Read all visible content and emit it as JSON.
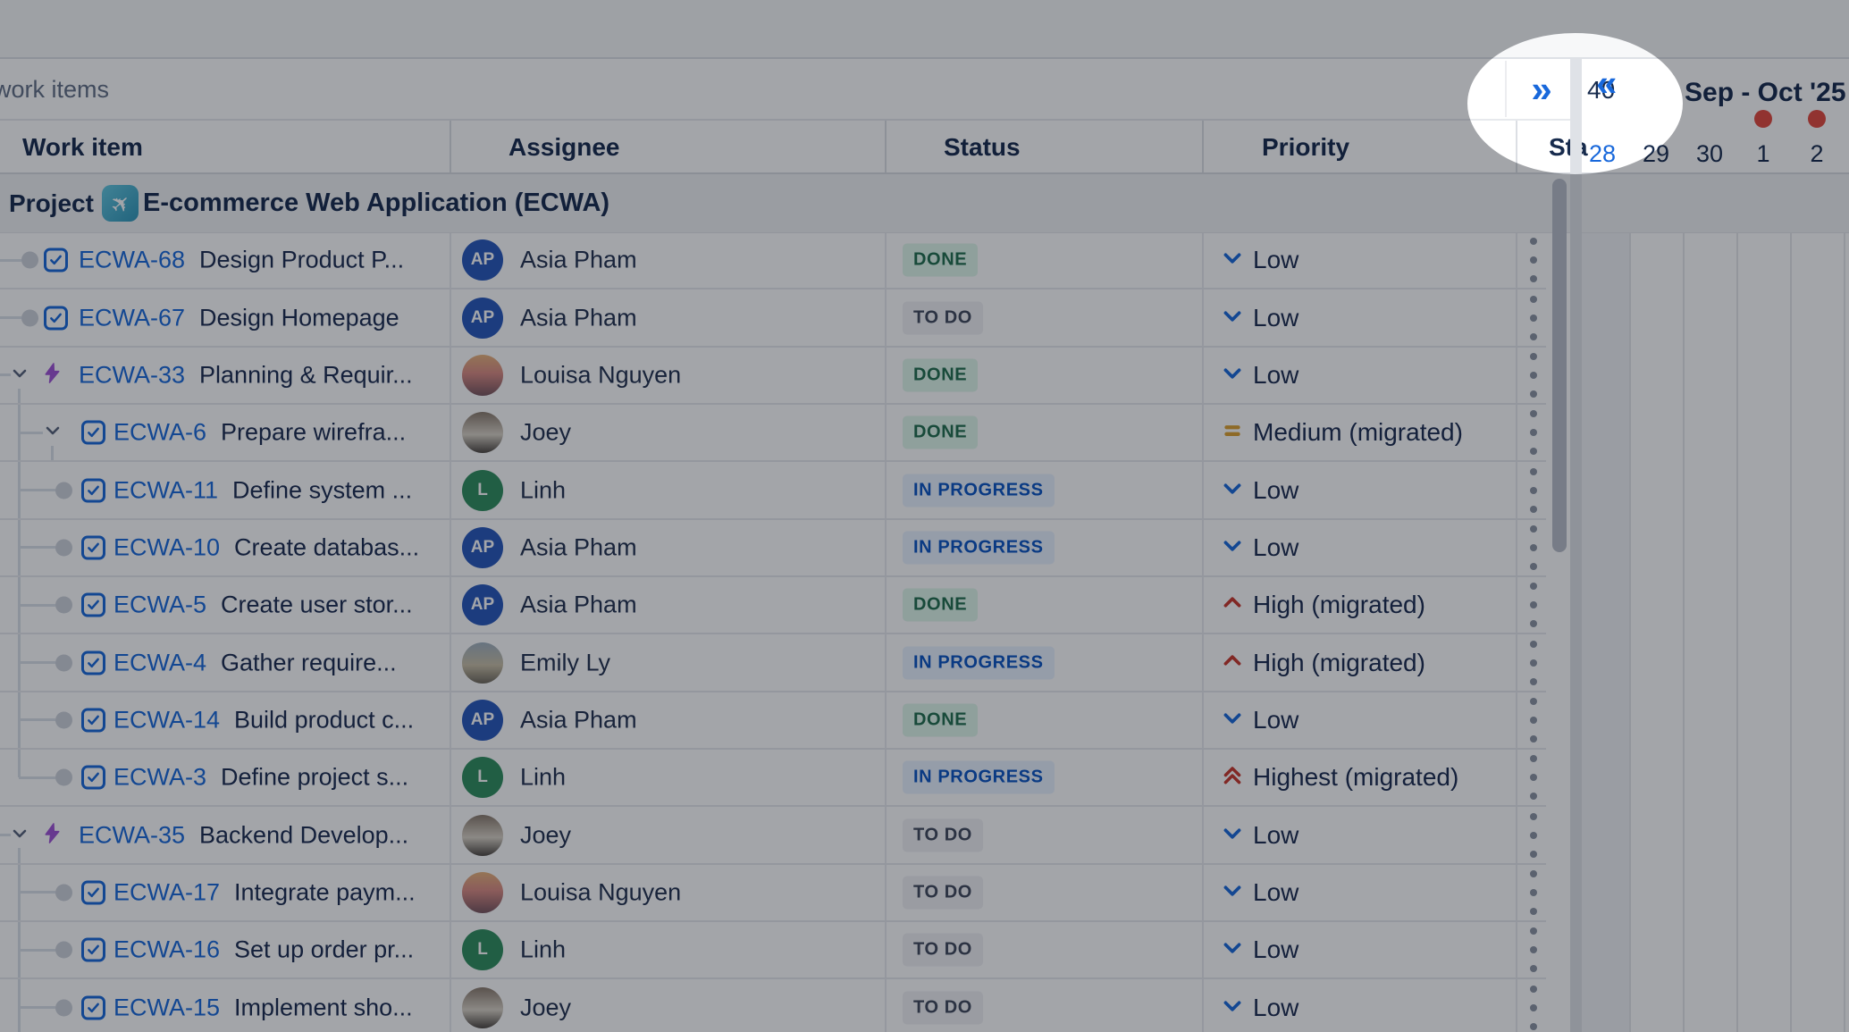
{
  "toolbar": {
    "left_label": "work items",
    "expand_glyph": "»"
  },
  "columns": [
    {
      "label": "Work item"
    },
    {
      "label": "Assignee"
    },
    {
      "label": "Status"
    },
    {
      "label": "Priority"
    },
    {
      "label": "Sta"
    }
  ],
  "project": {
    "label": "Project",
    "icon": "airplane-icon",
    "name": "E-commerce Web Application (ECWA)"
  },
  "people": {
    "asia": {
      "name": "Asia Pham",
      "kind": "initials",
      "initials": "AP",
      "color": "#2757BB"
    },
    "linh": {
      "name": "Linh",
      "kind": "initials",
      "initials": "L",
      "color": "#2F8E5E"
    },
    "louisa": {
      "name": "Louisa Nguyen",
      "kind": "photo",
      "photo": "louisa"
    },
    "joey": {
      "name": "Joey",
      "kind": "photo",
      "photo": "joey"
    },
    "emily": {
      "name": "Emily Ly",
      "kind": "photo",
      "photo": "emily"
    }
  },
  "statuses": {
    "done": {
      "label": "DONE",
      "variant": "st-done"
    },
    "todo": {
      "label": "TO DO",
      "variant": "st-todo"
    },
    "inprog": {
      "label": "IN PROGRESS",
      "variant": "st-inprog"
    }
  },
  "priorities": {
    "low": {
      "label": "Low"
    },
    "medium": {
      "label": "Medium (migrated)"
    },
    "high": {
      "label": "High (migrated)"
    },
    "highest": {
      "label": "Highest (migrated)"
    }
  },
  "rows": [
    {
      "key": "ECWA-68",
      "summary": "Design Product P...",
      "type": "task",
      "indent": 0,
      "lead": "dot",
      "vline": "none",
      "assignee": "asia",
      "status": "done",
      "priority": "low"
    },
    {
      "key": "ECWA-67",
      "summary": "Design Homepage",
      "type": "task",
      "indent": 0,
      "lead": "dot",
      "vline": "none",
      "assignee": "asia",
      "status": "todo",
      "priority": "low"
    },
    {
      "key": "ECWA-33",
      "summary": "Planning & Requir...",
      "type": "epic",
      "indent": 0,
      "lead": "chevron",
      "vline": "start",
      "assignee": "louisa",
      "status": "done",
      "priority": "low"
    },
    {
      "key": "ECWA-6",
      "summary": "Prepare wirefra...",
      "type": "task",
      "indent": 1,
      "lead": "chevron",
      "vline": "mid",
      "sub": true,
      "assignee": "joey",
      "status": "done",
      "priority": "medium"
    },
    {
      "key": "ECWA-11",
      "summary": "Define system ...",
      "type": "task",
      "indent": 1,
      "lead": "dot",
      "vline": "mid",
      "assignee": "linh",
      "status": "inprog",
      "priority": "low"
    },
    {
      "key": "ECWA-10",
      "summary": "Create databas...",
      "type": "task",
      "indent": 1,
      "lead": "dot",
      "vline": "mid",
      "assignee": "asia",
      "status": "inprog",
      "priority": "low"
    },
    {
      "key": "ECWA-5",
      "summary": "Create user stor...",
      "type": "task",
      "indent": 1,
      "lead": "dot",
      "vline": "mid",
      "assignee": "asia",
      "status": "done",
      "priority": "high"
    },
    {
      "key": "ECWA-4",
      "summary": "Gather require...",
      "type": "task",
      "indent": 1,
      "lead": "dot",
      "vline": "mid",
      "assignee": "emily",
      "status": "inprog",
      "priority": "high"
    },
    {
      "key": "ECWA-14",
      "summary": "Build product c...",
      "type": "task",
      "indent": 1,
      "lead": "dot",
      "vline": "mid",
      "assignee": "asia",
      "status": "done",
      "priority": "low"
    },
    {
      "key": "ECWA-3",
      "summary": "Define project s...",
      "type": "task",
      "indent": 1,
      "lead": "dot",
      "vline": "end",
      "assignee": "linh",
      "status": "inprog",
      "priority": "highest"
    },
    {
      "key": "ECWA-35",
      "summary": "Backend Develop...",
      "type": "epic",
      "indent": 0,
      "lead": "chevron",
      "vline": "start",
      "assignee": "joey",
      "status": "todo",
      "priority": "low"
    },
    {
      "key": "ECWA-17",
      "summary": "Integrate paym...",
      "type": "task",
      "indent": 1,
      "lead": "dot",
      "vline": "mid",
      "assignee": "louisa",
      "status": "todo",
      "priority": "low"
    },
    {
      "key": "ECWA-16",
      "summary": "Set up order pr...",
      "type": "task",
      "indent": 1,
      "lead": "dot",
      "vline": "mid",
      "assignee": "linh",
      "status": "todo",
      "priority": "low"
    },
    {
      "key": "ECWA-15",
      "summary": "Implement sho...",
      "type": "task",
      "indent": 1,
      "lead": "dot",
      "vline": "mid",
      "assignee": "joey",
      "status": "todo",
      "priority": "low"
    }
  ],
  "timeline": {
    "week_number": "40",
    "collapse_glyph": "«",
    "month_label": "Sep - Oct '25",
    "dates": [
      {
        "label": "28",
        "today": true,
        "release": false
      },
      {
        "label": "29",
        "today": false,
        "release": false
      },
      {
        "label": "30",
        "today": false,
        "release": false
      },
      {
        "label": "1",
        "today": false,
        "release": true
      },
      {
        "label": "2",
        "today": false,
        "release": true
      }
    ]
  },
  "colors": {
    "accent_blue": "#1868DB",
    "release_red": "#E2483D",
    "epic_purple": "#9F52D6",
    "medium_gold": "#DDA12F",
    "high_red": "#C9372C"
  }
}
